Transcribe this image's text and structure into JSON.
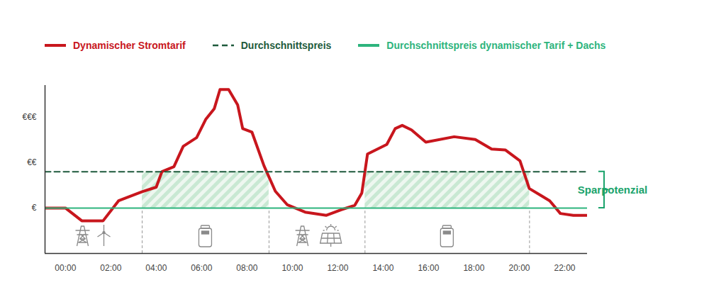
{
  "chart_data": {
    "type": "line",
    "xlim": [
      -0.9,
      23
    ],
    "xticks": [
      {
        "value": 0,
        "label": "00:00"
      },
      {
        "value": 2,
        "label": "02:00"
      },
      {
        "value": 4,
        "label": "04:00"
      },
      {
        "value": 6,
        "label": "06:00"
      },
      {
        "value": 8,
        "label": "08:00"
      },
      {
        "value": 10,
        "label": "10:00"
      },
      {
        "value": 12,
        "label": "12:00"
      },
      {
        "value": 14,
        "label": "14:00"
      },
      {
        "value": 16,
        "label": "16:00"
      },
      {
        "value": 18,
        "label": "18:00"
      },
      {
        "value": 20,
        "label": "20:00"
      },
      {
        "value": 22,
        "label": "22:00"
      }
    ],
    "ylim": [
      0,
      3.7
    ],
    "yticks": [
      {
        "value": 1,
        "label": "€"
      },
      {
        "value": 2,
        "label": "€€"
      },
      {
        "value": 3,
        "label": "€€€"
      }
    ],
    "grid": false,
    "legend": "top",
    "series": [
      {
        "name": "Dynamischer Stromtarif",
        "color": "#c8161d",
        "line_style": "solid",
        "x": [
          -0.9,
          0,
          0.72,
          1.66,
          2.34,
          3.38,
          4.0,
          4.25,
          4.78,
          5.19,
          5.78,
          6.19,
          6.56,
          6.81,
          7.19,
          7.59,
          7.81,
          8.22,
          8.75,
          9.25,
          9.78,
          10.56,
          11.5,
          12.13,
          12.75,
          13.06,
          13.31,
          14.16,
          14.53,
          14.84,
          15.25,
          15.88,
          17.13,
          18.06,
          18.78,
          19.38,
          20.03,
          20.44,
          21.34,
          21.81,
          22.38,
          23.0
        ],
        "values": [
          1.0,
          1.0,
          0.72,
          0.72,
          1.16,
          1.36,
          1.46,
          1.8,
          1.91,
          2.36,
          2.55,
          2.96,
          3.19,
          3.61,
          3.61,
          3.27,
          2.75,
          2.67,
          1.93,
          1.37,
          1.07,
          0.91,
          0.84,
          0.96,
          1.06,
          1.33,
          2.19,
          2.4,
          2.75,
          2.82,
          2.72,
          2.45,
          2.57,
          2.51,
          2.3,
          2.28,
          2.04,
          1.43,
          1.16,
          0.88,
          0.84,
          0.84
        ]
      },
      {
        "name": "Durchschnittspreis",
        "color": "#1e5a3c",
        "line_style": "dashed",
        "x": [
          -0.9,
          23.0
        ],
        "values": [
          1.8,
          1.8
        ]
      },
      {
        "name": "Durchschnittspreis dynamischer Tarif + Dachs",
        "color": "#2db47d",
        "line_style": "solid",
        "x": [
          -0.9,
          23.0
        ],
        "values": [
          1.0,
          1.0
        ]
      }
    ],
    "savings": {
      "label": "Sparpotenzial",
      "color": "#1aa36b",
      "ranges": [
        [
          3.38,
          8.97
        ],
        [
          13.2,
          20.45
        ]
      ]
    }
  }
}
